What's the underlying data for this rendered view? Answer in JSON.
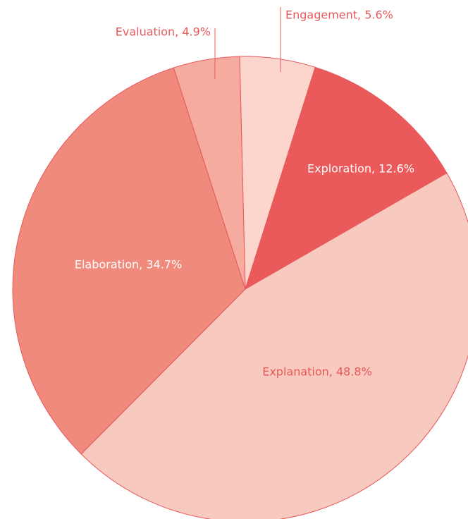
{
  "chart_data": {
    "type": "pie",
    "values": [
      5.6,
      12.6,
      48.8,
      34.7,
      4.9
    ],
    "value_labels": [
      "Engagement, 5.6%",
      "Exploration, 12.6%",
      "Explanation, 48.8%",
      "Elaboration, 34.7%",
      "Evaluation, 4.9%"
    ],
    "colors": [
      "#fcd6cd",
      "#eb5a5b",
      "#f8c9be",
      "#f08a7d",
      "#f6ab9f"
    ]
  }
}
